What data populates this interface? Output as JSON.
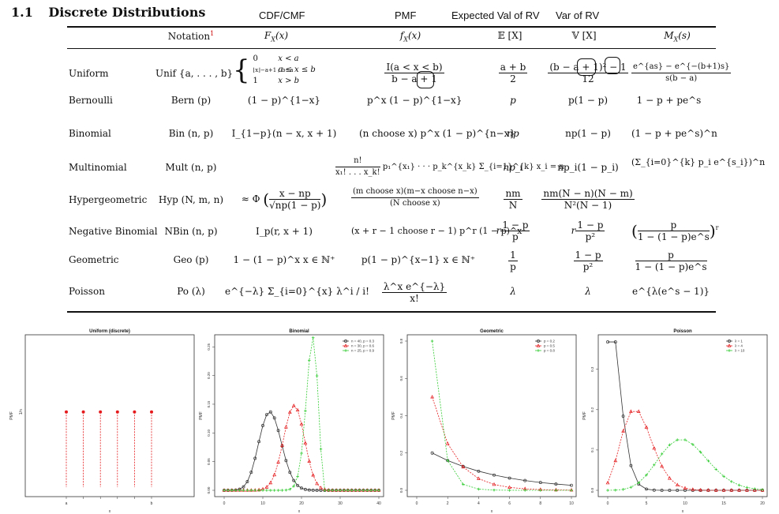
{
  "header": {
    "number": "1.1",
    "title": "Discrete Distributions"
  },
  "annotations": {
    "cdf": "CDF/CMF",
    "pmf": "PMF",
    "expected": "Expected Val of RV",
    "var": "Var of RV"
  },
  "columns": {
    "notation": "Notation",
    "notation_sup": "1",
    "cdf": "F",
    "cdf_sub": "X",
    "cdf_arg": "(x)",
    "pmf": "f",
    "pmf_sub": "X",
    "pmf_arg": "(x)",
    "mean": "𝔼 [X]",
    "var": "𝕍 [X]",
    "mgf": "M",
    "mgf_sub": "X",
    "mgf_arg": "(s)"
  },
  "rows": [
    {
      "name": "Uniform",
      "notation": "Unif {a, . . . , b}",
      "cdf_lines": [
        "0",
        "x < a",
        "⌊x⌋−a+1 / b−a",
        "a ≤ x ≤ b",
        "1",
        "x > b"
      ],
      "pmf_num": "I(a < x < b)",
      "pmf_den": "b − a + 1",
      "mean_num": "a + b",
      "mean_den": "2",
      "var_num": "(b − a + 1)² − 1",
      "var_den": "12",
      "mgf_num": "e^{as} − e^{−(b+1)s}",
      "mgf_den": "s(b − a)"
    },
    {
      "name": "Bernoulli",
      "notation": "Bern (p)",
      "cdf": "(1 − p)^{1−x}",
      "pmf": "p^x (1 − p)^{1−x}",
      "mean": "p",
      "var": "p(1 − p)",
      "mgf": "1 − p + pe^s"
    },
    {
      "name": "Binomial",
      "notation": "Bin (n, p)",
      "cdf": "I_{1−p}(n − x, x + 1)",
      "pmf": "(n choose x) p^x (1 − p)^{n−x}",
      "mean": "np",
      "var": "np(1 − p)",
      "mgf": "(1 − p + pe^s)^n"
    },
    {
      "name": "Multinomial",
      "notation": "Mult (n, p)",
      "pmf_num": "n!",
      "pmf_den": "x₁! . . . x_k!",
      "pmf_tail": "p₁^{x₁} · · · p_k^{x_k}   Σ_{i=1}^{k} x_i = n",
      "mean": "np_i",
      "var": "np_i(1 − p_i)",
      "mgf": "(Σ_{i=0}^{k} p_i e^{s_i})^n"
    },
    {
      "name": "Hypergeometric",
      "notation": "Hyp (N, m, n)",
      "cdf_pre": "≈ Φ",
      "cdf_num": "x − np",
      "cdf_den": "√np(1 − p)",
      "pmf_num": "(m choose x)(m−x choose n−x)",
      "pmf_den": "(N choose x)",
      "mean_num": "nm",
      "mean_den": "N",
      "var_num": "nm(N − n)(N − m)",
      "var_den": "N²(N − 1)"
    },
    {
      "name": "Negative Binomial",
      "notation": "NBin (n, p)",
      "cdf": "I_p(r, x + 1)",
      "pmf": "(x + r − 1 choose r − 1) p^r (1 − p)^x",
      "mean_pre": "r",
      "mean_num": "1 − p",
      "mean_den": "p",
      "var_pre": "r",
      "var_num": "1 − p",
      "var_den": "p²",
      "mgf_num": "p",
      "mgf_den": "1 − (1 − p)e^s",
      "mgf_pow": "r"
    },
    {
      "name": "Geometric",
      "notation": "Geo (p)",
      "cdf": "1 − (1 − p)^x   x ∈ ℕ⁺",
      "pmf": "p(1 − p)^{x−1}   x ∈ ℕ⁺",
      "mean_num": "1",
      "mean_den": "p",
      "var_num": "1 − p",
      "var_den": "p²",
      "mgf_num": "p",
      "mgf_den": "1 − (1 − p)e^s"
    },
    {
      "name": "Poisson",
      "notation": "Po (λ)",
      "cdf": "e^{−λ} Σ_{i=0}^{x} λ^i / i!",
      "pmf_num": "λ^x e^{−λ}",
      "pmf_den": "x!",
      "mean": "λ",
      "var": "λ",
      "mgf": "e^{λ(e^s − 1)}"
    }
  ],
  "charts_text": {
    "uniform": {
      "title": "Uniform (discrete)",
      "xlabel": "x",
      "ylabel": "PMF",
      "yval": "1/n",
      "xticks": [
        "a",
        "b"
      ]
    },
    "binomial": {
      "title": "Binomial",
      "xlabel": "x",
      "ylabel": "PMF"
    },
    "geometric": {
      "title": "Geometric",
      "xlabel": "x",
      "ylabel": "PMF"
    },
    "poisson": {
      "title": "Poisson",
      "xlabel": "x",
      "ylabel": "PMF"
    }
  },
  "chart_data": [
    {
      "type": "scatter",
      "title": "Uniform (discrete)",
      "xlabel": "x",
      "ylabel": "PMF",
      "x": [
        0,
        1,
        2,
        3,
        4,
        5
      ],
      "series": [
        {
          "color": "#e41a1c",
          "values": [
            1,
            1,
            1,
            1,
            1,
            1
          ]
        }
      ],
      "ylim": [
        0,
        1.9
      ]
    },
    {
      "type": "line",
      "title": "Binomial",
      "xlabel": "x",
      "ylabel": "PMF",
      "xlim": [
        0,
        40
      ],
      "ylim": [
        0,
        0.26
      ],
      "xticks": [
        0,
        10,
        20,
        30,
        40
      ],
      "yticks": [
        0.0,
        0.05,
        0.1,
        0.15,
        0.2,
        0.25
      ],
      "legend": "top-right",
      "series": [
        {
          "name": "n = 40, p = 0.3",
          "color": "#333333",
          "marker": "circle",
          "params": {
            "n": 40,
            "p": 0.3
          }
        },
        {
          "name": "n = 30, p = 0.6",
          "color": "#e41a1c",
          "marker": "triangle",
          "params": {
            "n": 30,
            "p": 0.6
          }
        },
        {
          "name": "n = 25, p = 0.9",
          "color": "#33cc33",
          "marker": "plus",
          "params": {
            "n": 25,
            "p": 0.9
          }
        }
      ]
    },
    {
      "type": "line",
      "title": "Geometric",
      "xlabel": "x",
      "ylabel": "PMF",
      "xlim": [
        0,
        10
      ],
      "ylim": [
        0,
        0.8
      ],
      "xticks": [
        0,
        2,
        4,
        6,
        8,
        10
      ],
      "yticks": [
        0.0,
        0.2,
        0.4,
        0.6,
        0.8
      ],
      "legend": "top-right",
      "series": [
        {
          "name": "p = 0.2",
          "color": "#333333",
          "marker": "circle",
          "params": {
            "p": 0.2
          }
        },
        {
          "name": "p = 0.5",
          "color": "#e41a1c",
          "marker": "triangle",
          "params": {
            "p": 0.5
          }
        },
        {
          "name": "p = 0.8",
          "color": "#33cc33",
          "marker": "plus",
          "params": {
            "p": 0.8
          }
        }
      ]
    },
    {
      "type": "line",
      "title": "Poisson",
      "xlabel": "x",
      "ylabel": "PMF",
      "xlim": [
        0,
        20
      ],
      "ylim": [
        0,
        0.37
      ],
      "xticks": [
        0,
        5,
        10,
        15,
        20
      ],
      "yticks": [
        0.0,
        0.1,
        0.2,
        0.3
      ],
      "legend": "top-right",
      "series": [
        {
          "name": "λ = 1",
          "color": "#333333",
          "marker": "circle",
          "params": {
            "lambda": 1
          }
        },
        {
          "name": "λ = 4",
          "color": "#e41a1c",
          "marker": "triangle",
          "params": {
            "lambda": 4
          }
        },
        {
          "name": "λ = 10",
          "color": "#33cc33",
          "marker": "plus",
          "params": {
            "lambda": 10
          }
        }
      ]
    }
  ]
}
